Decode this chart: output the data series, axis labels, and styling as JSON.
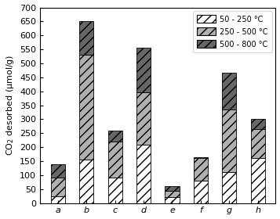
{
  "categories": [
    "a",
    "b",
    "c",
    "d",
    "e",
    "f",
    "g",
    "h"
  ],
  "low_temp": [
    25,
    155,
    90,
    210,
    20,
    80,
    110,
    160
  ],
  "mid_temp": [
    65,
    375,
    130,
    185,
    25,
    80,
    225,
    105
  ],
  "high_temp": [
    50,
    120,
    40,
    160,
    15,
    5,
    130,
    35
  ],
  "ylabel": "CO$_2$ desorbed (μmol/g)",
  "ylim": [
    0,
    700
  ],
  "yticks": [
    0,
    50,
    100,
    150,
    200,
    250,
    300,
    350,
    400,
    450,
    500,
    550,
    600,
    650,
    700
  ],
  "legend_labels": [
    "50 - 250 °C",
    "250 - 500 °C",
    "500 - 800 °C"
  ],
  "hatch_low": "///",
  "hatch_mid": "///",
  "hatch_high": "///",
  "color_low": "#e8e8e8",
  "color_mid": "#b0b0b0",
  "color_high": "#666666",
  "bar_width": 0.5,
  "figsize": [
    3.57,
    2.8
  ],
  "dpi": 100
}
